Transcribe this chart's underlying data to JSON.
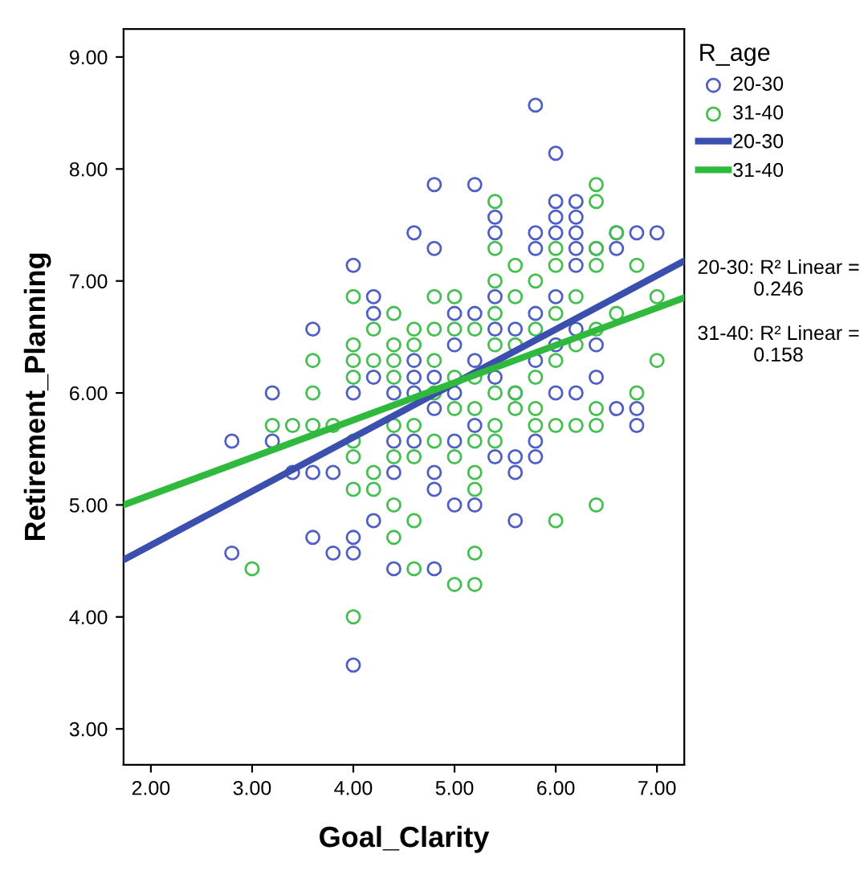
{
  "chart_data": {
    "type": "scatter",
    "xlabel": "Goal_Clarity",
    "ylabel": "Retirement_Planning",
    "legend_title": "R_age",
    "legend": "right",
    "marker": "circle",
    "grid": false,
    "xlim": [
      1.73,
      7.27
    ],
    "ylim": [
      2.68,
      9.25
    ],
    "xticks": [
      {
        "value": 2,
        "label": "2.00"
      },
      {
        "value": 3,
        "label": "3.00"
      },
      {
        "value": 4,
        "label": "4.00"
      },
      {
        "value": 5,
        "label": "5.00"
      },
      {
        "value": 6,
        "label": "6.00"
      },
      {
        "value": 7,
        "label": "7.00"
      }
    ],
    "yticks": [
      {
        "value": 3,
        "label": "3.00"
      },
      {
        "value": 4,
        "label": "4.00"
      },
      {
        "value": 5,
        "label": "5.00"
      },
      {
        "value": 6,
        "label": "6.00"
      },
      {
        "value": 7,
        "label": "7.00"
      },
      {
        "value": 8,
        "label": "8.00"
      },
      {
        "value": 9,
        "label": "9.00"
      }
    ],
    "annotations": [
      "20-30: R² Linear =\n0.246",
      "31-40: R² Linear =\n0.158"
    ],
    "series": [
      {
        "name": "20-30",
        "color": "#4f5fc4",
        "x": [
          2.8,
          2.8,
          3.2,
          3.2,
          3.4,
          3.6,
          3.6,
          3.6,
          3.8,
          3.8,
          4.0,
          4.0,
          4.0,
          4.0,
          4.0,
          4.2,
          4.2,
          4.2,
          4.2,
          4.4,
          4.4,
          4.4,
          4.4,
          4.6,
          4.6,
          4.6,
          4.6,
          4.6,
          4.8,
          4.8,
          4.8,
          4.8,
          4.8,
          4.8,
          4.8,
          5.0,
          5.0,
          5.0,
          5.0,
          5.0,
          5.2,
          5.2,
          5.2,
          5.2,
          5.2,
          5.4,
          5.4,
          5.4,
          5.4,
          5.4,
          5.4,
          5.6,
          5.6,
          5.6,
          5.6,
          5.6,
          5.8,
          5.8,
          5.8,
          5.8,
          5.8,
          5.8,
          5.8,
          6.0,
          6.0,
          6.0,
          6.0,
          6.0,
          6.0,
          6.0,
          6.2,
          6.2,
          6.2,
          6.2,
          6.2,
          6.2,
          6.2,
          6.4,
          6.4,
          6.4,
          6.6,
          6.6,
          6.6,
          6.8,
          6.8,
          6.8,
          7.0
        ],
        "values": [
          5.57,
          4.57,
          6.0,
          5.57,
          5.29,
          6.57,
          5.29,
          4.71,
          5.29,
          4.57,
          7.14,
          6.0,
          4.71,
          4.57,
          3.57,
          6.86,
          6.71,
          6.14,
          4.86,
          6.0,
          5.57,
          5.29,
          4.43,
          7.43,
          6.29,
          6.14,
          6.0,
          5.57,
          7.86,
          7.29,
          6.14,
          5.86,
          5.29,
          5.14,
          4.43,
          6.71,
          6.43,
          6.0,
          5.57,
          5.0,
          7.86,
          6.71,
          6.29,
          5.71,
          5.0,
          7.57,
          7.43,
          6.86,
          6.57,
          6.14,
          5.43,
          6.57,
          6.0,
          5.43,
          5.29,
          4.86,
          8.57,
          7.43,
          7.29,
          6.71,
          6.29,
          5.57,
          5.43,
          8.14,
          7.71,
          7.57,
          7.43,
          6.86,
          6.43,
          6.0,
          7.71,
          7.57,
          7.43,
          7.29,
          7.14,
          6.57,
          6.0,
          7.29,
          6.43,
          6.14,
          7.43,
          7.29,
          5.86,
          7.43,
          5.86,
          5.71,
          7.43
        ]
      },
      {
        "name": "31-40",
        "color": "#45bf4f",
        "x": [
          3.0,
          3.2,
          3.4,
          3.6,
          3.6,
          3.6,
          3.8,
          4.0,
          4.0,
          4.0,
          4.0,
          4.0,
          4.0,
          4.0,
          4.0,
          4.2,
          4.2,
          4.2,
          4.2,
          4.4,
          4.4,
          4.4,
          4.4,
          4.4,
          4.4,
          4.4,
          4.4,
          4.6,
          4.6,
          4.6,
          4.6,
          4.6,
          4.6,
          4.8,
          4.8,
          4.8,
          4.8,
          4.8,
          5.0,
          5.0,
          5.0,
          5.0,
          5.0,
          5.0,
          5.2,
          5.2,
          5.2,
          5.2,
          5.2,
          5.2,
          5.2,
          5.2,
          5.4,
          5.4,
          5.4,
          5.4,
          5.4,
          5.4,
          5.4,
          5.4,
          5.6,
          5.6,
          5.6,
          5.6,
          5.6,
          5.8,
          5.8,
          5.8,
          5.8,
          5.8,
          6.0,
          6.0,
          6.0,
          6.0,
          6.0,
          6.0,
          6.2,
          6.2,
          6.2,
          6.4,
          6.4,
          6.4,
          6.4,
          6.4,
          6.4,
          6.4,
          6.4,
          6.6,
          6.6,
          6.8,
          6.8,
          7.0,
          7.0
        ],
        "values": [
          4.43,
          5.71,
          5.71,
          6.29,
          6.0,
          5.71,
          5.71,
          6.86,
          6.43,
          6.29,
          6.14,
          5.57,
          5.43,
          5.14,
          4.0,
          6.57,
          6.29,
          5.29,
          5.14,
          6.71,
          6.43,
          6.29,
          6.14,
          5.71,
          5.43,
          5.0,
          4.71,
          6.57,
          6.43,
          5.71,
          5.43,
          4.86,
          4.43,
          6.86,
          6.57,
          6.29,
          6.0,
          5.57,
          6.86,
          6.57,
          6.14,
          5.86,
          5.43,
          4.29,
          6.57,
          6.14,
          5.86,
          5.57,
          5.29,
          5.14,
          4.57,
          4.29,
          7.71,
          7.29,
          7.0,
          6.71,
          6.43,
          6.0,
          5.71,
          5.57,
          7.14,
          6.86,
          6.43,
          6.0,
          5.86,
          7.0,
          6.57,
          6.14,
          5.86,
          5.71,
          7.29,
          7.14,
          6.71,
          6.29,
          5.71,
          4.86,
          6.86,
          6.43,
          5.71,
          7.86,
          7.71,
          7.29,
          7.14,
          6.57,
          5.86,
          5.71,
          5.0,
          7.43,
          6.71,
          7.14,
          6.0,
          6.86,
          6.29
        ]
      },
      {
        "name": "20-30",
        "type": "line",
        "marker": "none",
        "color": "#3a4fae",
        "x": [
          1.73,
          7.27
        ],
        "values": [
          4.51,
          7.18
        ]
      },
      {
        "name": "31-40",
        "type": "line",
        "marker": "none",
        "color": "#2fba3e",
        "x": [
          1.73,
          7.27
        ],
        "values": [
          5.0,
          6.85
        ]
      }
    ]
  }
}
